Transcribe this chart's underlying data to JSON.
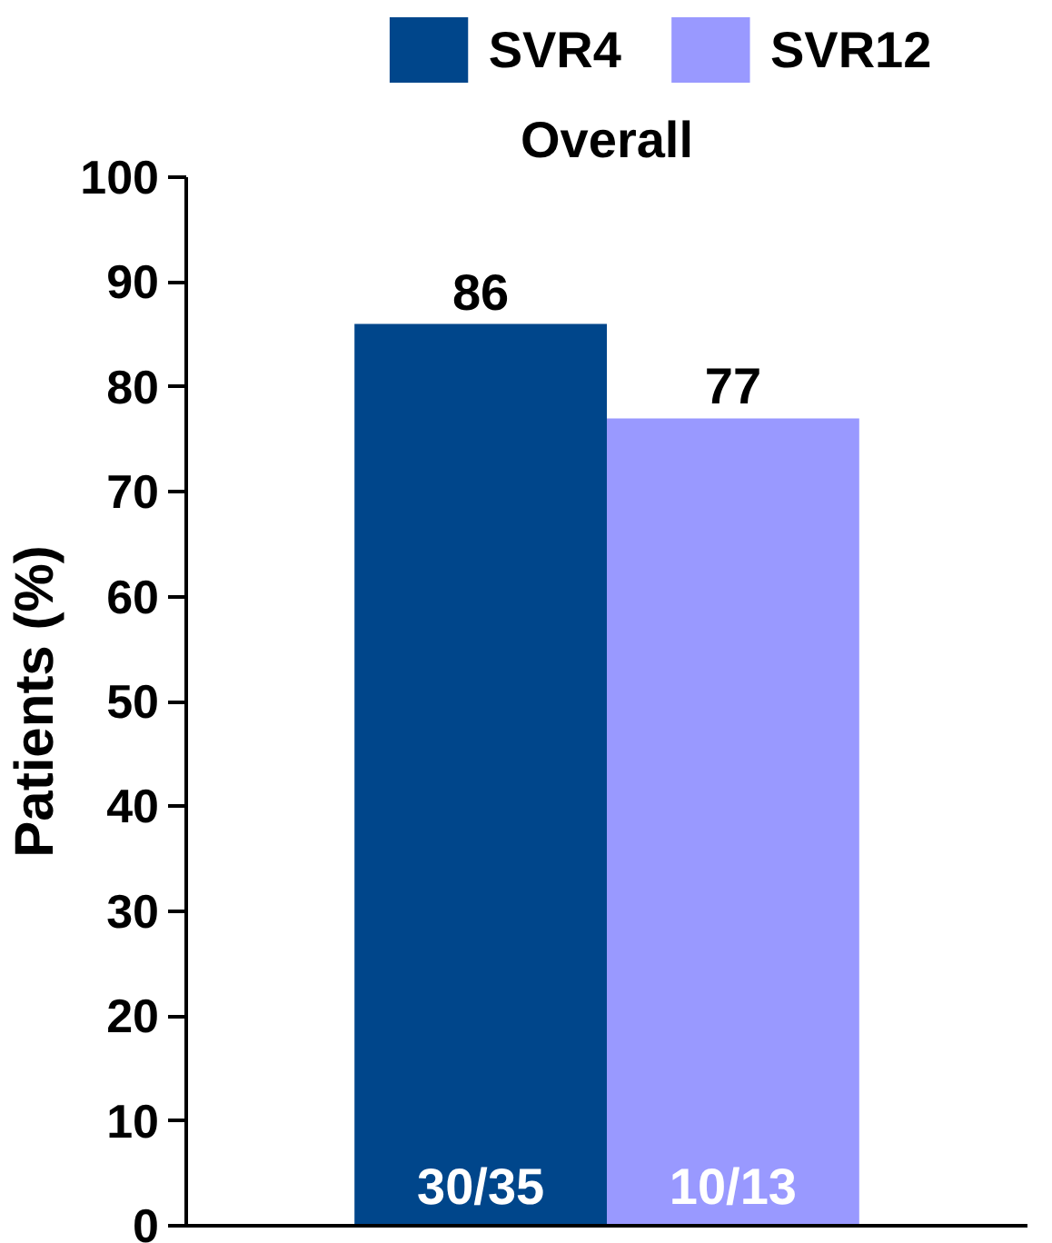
{
  "chart_data": {
    "type": "bar",
    "title": "Overall",
    "ylabel": "Patients (%)",
    "categories": [
      null
    ],
    "series": [
      {
        "name": "SVR4",
        "color": "#00468b",
        "values": [
          86
        ]
      },
      {
        "name": "SVR12",
        "color": "#9999ff",
        "values": [
          77
        ]
      }
    ],
    "data_labels": true,
    "annotations": [
      "30/35",
      "10/13"
    ],
    "ylim": [
      0,
      100
    ],
    "yticks": [
      0,
      10,
      20,
      30,
      40,
      50,
      60,
      70,
      80,
      90,
      100
    ],
    "grid": false,
    "legend": "top"
  }
}
